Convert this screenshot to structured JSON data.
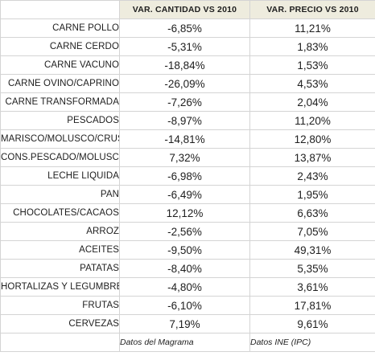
{
  "table": {
    "headers": [
      "",
      "VAR. CANTIDAD VS 2010",
      "VAR. PRECIO VS 2010"
    ],
    "rows": [
      {
        "label": "CARNE POLLO",
        "qty": "-6,85%",
        "price": "11,21%"
      },
      {
        "label": "CARNE CERDO",
        "qty": "-5,31%",
        "price": "1,83%"
      },
      {
        "label": "CARNE VACUNO",
        "qty": "-18,84%",
        "price": "1,53%"
      },
      {
        "label": "CARNE OVINO/CAPRINO",
        "qty": "-26,09%",
        "price": "4,53%"
      },
      {
        "label": "CARNE TRANSFORMADA",
        "qty": "-7,26%",
        "price": "2,04%"
      },
      {
        "label": "PESCADOS",
        "qty": "-8,97%",
        "price": "11,20%"
      },
      {
        "label": "MARISCO/MOLUSCO/CRUS",
        "qty": "-14,81%",
        "price": "12,80%"
      },
      {
        "label": "CONS.PESCADO/MOLUSCO",
        "qty": "7,32%",
        "price": "13,87%"
      },
      {
        "label": "LECHE LIQUIDA",
        "qty": "-6,98%",
        "price": "2,43%"
      },
      {
        "label": "PAN",
        "qty": "-6,49%",
        "price": "1,95%"
      },
      {
        "label": "CHOCOLATES/CACAOS",
        "qty": "12,12%",
        "price": "6,63%"
      },
      {
        "label": "ARROZ",
        "qty": "-2,56%",
        "price": "7,05%"
      },
      {
        "label": "ACEITES",
        "qty": "-9,50%",
        "price": "49,31%"
      },
      {
        "label": "PATATAS",
        "qty": "-8,40%",
        "price": "5,35%"
      },
      {
        "label": "HORTALIZAS Y LEGUMBRES",
        "qty": "-4,80%",
        "price": "3,61%"
      },
      {
        "label": "FRUTAS",
        "qty": "-6,10%",
        "price": "17,81%"
      },
      {
        "label": "CERVEZAS",
        "qty": "7,19%",
        "price": "9,61%"
      }
    ],
    "footnotes": [
      "Datos del Magrama",
      "Datos INE (IPC)"
    ]
  },
  "colors": {
    "header_fill": "#eeecde",
    "gridline": "#d4d4d4"
  }
}
